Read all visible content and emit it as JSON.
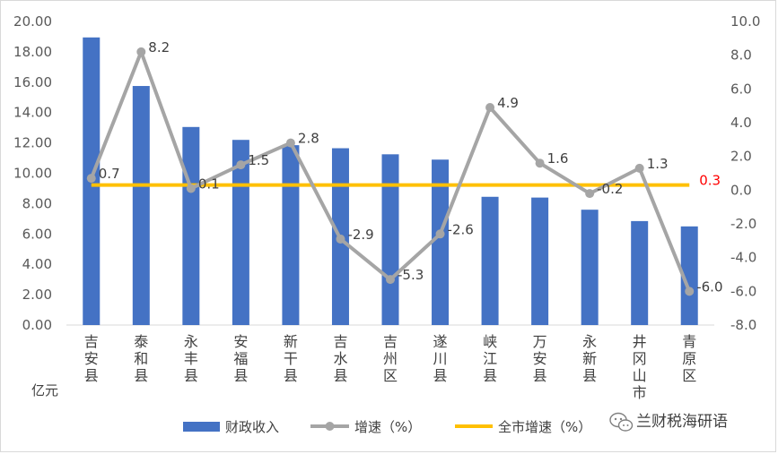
{
  "chart_data": {
    "type": "bar+line",
    "categories": [
      [
        "吉",
        "安",
        "县"
      ],
      [
        "泰",
        "和",
        "县"
      ],
      [
        "永",
        "丰",
        "县"
      ],
      [
        "安",
        "福",
        "县"
      ],
      [
        "新",
        "干",
        "县"
      ],
      [
        "吉",
        "水",
        "县"
      ],
      [
        "吉",
        "州",
        "区"
      ],
      [
        "遂",
        "川",
        "县"
      ],
      [
        "峡",
        "江",
        "县"
      ],
      [
        "万",
        "安",
        "县"
      ],
      [
        "永",
        "新",
        "县"
      ],
      [
        "井",
        "冈",
        "山",
        "市"
      ],
      [
        "青",
        "原",
        "区"
      ]
    ],
    "series": [
      {
        "name": "财政收入",
        "type": "bar",
        "axis": "left",
        "color": "#4472c4",
        "values": [
          18.95,
          15.75,
          13.05,
          12.2,
          11.85,
          11.65,
          11.25,
          10.9,
          8.45,
          8.4,
          7.6,
          6.85,
          6.5
        ]
      },
      {
        "name": "增速（%）",
        "type": "line",
        "axis": "right",
        "color": "#a5a5a5",
        "values": [
          0.7,
          8.2,
          0.1,
          1.5,
          2.8,
          -2.9,
          -5.3,
          -2.6,
          4.9,
          1.6,
          -0.2,
          1.3,
          -6.0
        ],
        "labels": [
          "0.7",
          "8.2",
          "0.1",
          "1.5",
          "2.8",
          "-2.9",
          "-5.3",
          "-2.6",
          "4.9",
          "1.6",
          "-0.2",
          "1.3",
          "-6.0"
        ]
      },
      {
        "name": "全市增速（%）",
        "type": "line",
        "axis": "right",
        "color": "#ffc000",
        "value": 0.3,
        "label": "0.3",
        "label_color": "#ff0000"
      }
    ],
    "left_axis": {
      "min": 0,
      "max": 20,
      "step": 2,
      "tick_labels": [
        "0.00",
        "2.00",
        "4.00",
        "6.00",
        "8.00",
        "10.00",
        "12.00",
        "14.00",
        "16.00",
        "18.00",
        "20.00"
      ]
    },
    "right_axis": {
      "min": -8,
      "max": 10,
      "step": 2,
      "tick_labels": [
        "-8.0",
        "-6.0",
        "-4.0",
        "-2.0",
        "0.0",
        "2.0",
        "4.0",
        "6.0",
        "8.0",
        "10.0"
      ]
    },
    "unit_label": "亿元",
    "grid": false,
    "legend_position": "bottom"
  },
  "watermark": {
    "icon": "wechat-icon",
    "text": "兰财税海研语"
  }
}
